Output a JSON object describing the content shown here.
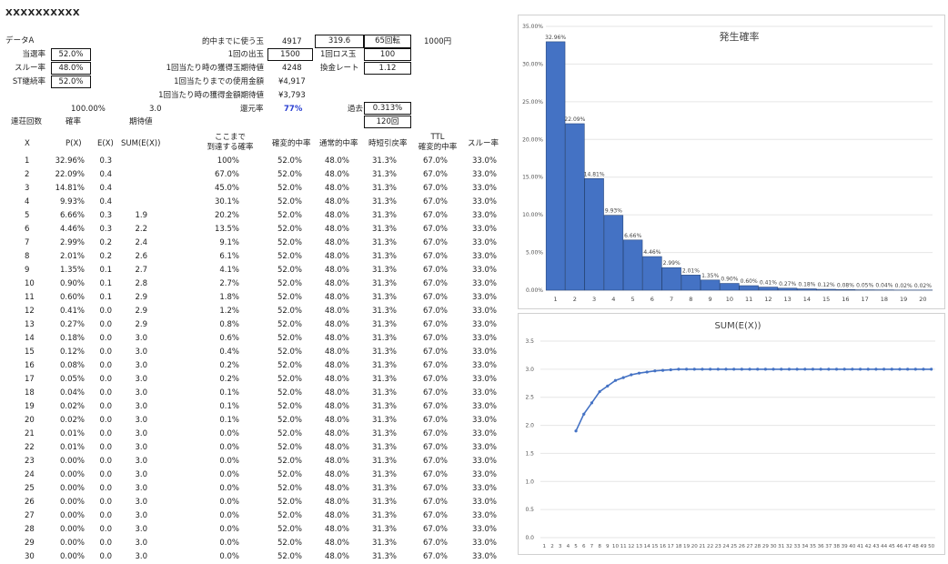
{
  "sheet": {
    "title": "XXXXXXXXXX",
    "data_label": "データA",
    "params": [
      {
        "label": "当選率",
        "value": "52.0%"
      },
      {
        "label": "スルー率",
        "value": "48.0%"
      },
      {
        "label": "ST継続率",
        "value": "52.0%"
      }
    ],
    "info": [
      {
        "label": "的中までに使う玉",
        "value": "4917"
      },
      {
        "label": "1回の出玉",
        "value": "1500"
      },
      {
        "label": "1回当たり時の獲得玉期待値",
        "value": "4248"
      },
      {
        "label": "1回当たりまでの使用金額",
        "value": "¥4,917"
      },
      {
        "label": "1回当たり時の獲得金額期待値",
        "value": "¥3,793"
      }
    ],
    "extra": {
      "v1": "319.6",
      "v2": "65回転",
      "v3": "1000円",
      "loss_label": "1回ロス玉",
      "loss_value": "100",
      "rate_label": "換金レート",
      "rate_value": "1.12",
      "return_label": "還元率",
      "return_value": "77%",
      "past_label": "過去",
      "past_value": "0.313%",
      "past_count": "120回"
    },
    "summary": {
      "total_prob": "100.00%",
      "expected": "3.0"
    },
    "subheaders": {
      "col1": "連荘回数",
      "col2": "確率",
      "col3": "期待値"
    },
    "headers": [
      "X",
      "P(X)",
      "E(X)",
      "SUM(E(X))",
      "ここまで\n到達する確率",
      "確変的中率",
      "通常的中率",
      "時短引戻率",
      "TTL\n確変的中率",
      "スルー率"
    ],
    "rows": [
      [
        "1",
        "32.96%",
        "0.3",
        "",
        "100%",
        "52.0%",
        "48.0%",
        "31.3%",
        "67.0%",
        "33.0%"
      ],
      [
        "2",
        "22.09%",
        "0.4",
        "",
        "67.0%",
        "52.0%",
        "48.0%",
        "31.3%",
        "67.0%",
        "33.0%"
      ],
      [
        "3",
        "14.81%",
        "0.4",
        "",
        "45.0%",
        "52.0%",
        "48.0%",
        "31.3%",
        "67.0%",
        "33.0%"
      ],
      [
        "4",
        "9.93%",
        "0.4",
        "",
        "30.1%",
        "52.0%",
        "48.0%",
        "31.3%",
        "67.0%",
        "33.0%"
      ],
      [
        "5",
        "6.66%",
        "0.3",
        "1.9",
        "20.2%",
        "52.0%",
        "48.0%",
        "31.3%",
        "67.0%",
        "33.0%"
      ],
      [
        "6",
        "4.46%",
        "0.3",
        "2.2",
        "13.5%",
        "52.0%",
        "48.0%",
        "31.3%",
        "67.0%",
        "33.0%"
      ],
      [
        "7",
        "2.99%",
        "0.2",
        "2.4",
        "9.1%",
        "52.0%",
        "48.0%",
        "31.3%",
        "67.0%",
        "33.0%"
      ],
      [
        "8",
        "2.01%",
        "0.2",
        "2.6",
        "6.1%",
        "52.0%",
        "48.0%",
        "31.3%",
        "67.0%",
        "33.0%"
      ],
      [
        "9",
        "1.35%",
        "0.1",
        "2.7",
        "4.1%",
        "52.0%",
        "48.0%",
        "31.3%",
        "67.0%",
        "33.0%"
      ],
      [
        "10",
        "0.90%",
        "0.1",
        "2.8",
        "2.7%",
        "52.0%",
        "48.0%",
        "31.3%",
        "67.0%",
        "33.0%"
      ],
      [
        "11",
        "0.60%",
        "0.1",
        "2.9",
        "1.8%",
        "52.0%",
        "48.0%",
        "31.3%",
        "67.0%",
        "33.0%"
      ],
      [
        "12",
        "0.41%",
        "0.0",
        "2.9",
        "1.2%",
        "52.0%",
        "48.0%",
        "31.3%",
        "67.0%",
        "33.0%"
      ],
      [
        "13",
        "0.27%",
        "0.0",
        "2.9",
        "0.8%",
        "52.0%",
        "48.0%",
        "31.3%",
        "67.0%",
        "33.0%"
      ],
      [
        "14",
        "0.18%",
        "0.0",
        "3.0",
        "0.6%",
        "52.0%",
        "48.0%",
        "31.3%",
        "67.0%",
        "33.0%"
      ],
      [
        "15",
        "0.12%",
        "0.0",
        "3.0",
        "0.4%",
        "52.0%",
        "48.0%",
        "31.3%",
        "67.0%",
        "33.0%"
      ],
      [
        "16",
        "0.08%",
        "0.0",
        "3.0",
        "0.2%",
        "52.0%",
        "48.0%",
        "31.3%",
        "67.0%",
        "33.0%"
      ],
      [
        "17",
        "0.05%",
        "0.0",
        "3.0",
        "0.2%",
        "52.0%",
        "48.0%",
        "31.3%",
        "67.0%",
        "33.0%"
      ],
      [
        "18",
        "0.04%",
        "0.0",
        "3.0",
        "0.1%",
        "52.0%",
        "48.0%",
        "31.3%",
        "67.0%",
        "33.0%"
      ],
      [
        "19",
        "0.02%",
        "0.0",
        "3.0",
        "0.1%",
        "52.0%",
        "48.0%",
        "31.3%",
        "67.0%",
        "33.0%"
      ],
      [
        "20",
        "0.02%",
        "0.0",
        "3.0",
        "0.1%",
        "52.0%",
        "48.0%",
        "31.3%",
        "67.0%",
        "33.0%"
      ],
      [
        "21",
        "0.01%",
        "0.0",
        "3.0",
        "0.0%",
        "52.0%",
        "48.0%",
        "31.3%",
        "67.0%",
        "33.0%"
      ],
      [
        "22",
        "0.01%",
        "0.0",
        "3.0",
        "0.0%",
        "52.0%",
        "48.0%",
        "31.3%",
        "67.0%",
        "33.0%"
      ],
      [
        "23",
        "0.00%",
        "0.0",
        "3.0",
        "0.0%",
        "52.0%",
        "48.0%",
        "31.3%",
        "67.0%",
        "33.0%"
      ],
      [
        "24",
        "0.00%",
        "0.0",
        "3.0",
        "0.0%",
        "52.0%",
        "48.0%",
        "31.3%",
        "67.0%",
        "33.0%"
      ],
      [
        "25",
        "0.00%",
        "0.0",
        "3.0",
        "0.0%",
        "52.0%",
        "48.0%",
        "31.3%",
        "67.0%",
        "33.0%"
      ],
      [
        "26",
        "0.00%",
        "0.0",
        "3.0",
        "0.0%",
        "52.0%",
        "48.0%",
        "31.3%",
        "67.0%",
        "33.0%"
      ],
      [
        "27",
        "0.00%",
        "0.0",
        "3.0",
        "0.0%",
        "52.0%",
        "48.0%",
        "31.3%",
        "67.0%",
        "33.0%"
      ],
      [
        "28",
        "0.00%",
        "0.0",
        "3.0",
        "0.0%",
        "52.0%",
        "48.0%",
        "31.3%",
        "67.0%",
        "33.0%"
      ],
      [
        "29",
        "0.00%",
        "0.0",
        "3.0",
        "0.0%",
        "52.0%",
        "48.0%",
        "31.3%",
        "67.0%",
        "33.0%"
      ],
      [
        "30",
        "0.00%",
        "0.0",
        "3.0",
        "0.0%",
        "52.0%",
        "48.0%",
        "31.3%",
        "67.0%",
        "33.0%"
      ]
    ]
  },
  "chart_data": [
    {
      "type": "bar",
      "title": "発生確率",
      "xlabel": "",
      "ylabel": "",
      "categories": [
        "1",
        "2",
        "3",
        "4",
        "5",
        "6",
        "7",
        "8",
        "9",
        "10",
        "11",
        "12",
        "13",
        "14",
        "15",
        "16",
        "17",
        "18",
        "19",
        "20"
      ],
      "values": [
        32.96,
        22.09,
        14.81,
        9.93,
        6.66,
        4.46,
        2.99,
        2.01,
        1.35,
        0.9,
        0.6,
        0.41,
        0.27,
        0.18,
        0.12,
        0.08,
        0.05,
        0.04,
        0.02,
        0.02
      ],
      "data_labels": [
        "32.96%",
        "22.09%",
        "14.81%",
        "9.93%",
        "6.66%",
        "4.46%",
        "2.99%",
        "2.01%",
        "1.35%",
        "0.90%",
        "0.60%",
        "0.41%",
        "0.27%",
        "0.18%",
        "0.12%",
        "0.08%",
        "0.05%",
        "0.04%",
        "0.02%",
        "0.02%"
      ],
      "ylim": [
        0,
        35
      ],
      "yticks": [
        "0.00%",
        "5.00%",
        "10.00%",
        "15.00%",
        "20.00%",
        "25.00%",
        "30.00%",
        "35.00%"
      ],
      "color": "#4472c4"
    },
    {
      "type": "line",
      "title": "SUM(E(X))",
      "xlabel": "",
      "ylabel": "",
      "x": [
        1,
        2,
        3,
        4,
        5,
        6,
        7,
        8,
        9,
        10,
        11,
        12,
        13,
        14,
        15,
        16,
        17,
        18,
        19,
        20,
        21,
        22,
        23,
        24,
        25,
        26,
        27,
        28,
        29,
        30,
        31,
        32,
        33,
        34,
        35,
        36,
        37,
        38,
        39,
        40,
        41,
        42,
        43,
        44,
        45,
        46,
        47,
        48,
        49,
        50
      ],
      "values": [
        null,
        null,
        null,
        null,
        1.9,
        2.2,
        2.4,
        2.6,
        2.7,
        2.8,
        2.85,
        2.9,
        2.93,
        2.95,
        2.97,
        2.98,
        2.99,
        3.0,
        3.0,
        3.0,
        3.0,
        3.0,
        3.0,
        3.0,
        3.0,
        3.0,
        3.0,
        3.0,
        3.0,
        3.0,
        3.0,
        3.0,
        3.0,
        3.0,
        3.0,
        3.0,
        3.0,
        3.0,
        3.0,
        3.0,
        3.0,
        3.0,
        3.0,
        3.0,
        3.0,
        3.0,
        3.0,
        3.0,
        3.0,
        3.0
      ],
      "ylim": [
        0,
        3.5
      ],
      "yticks": [
        "0.0",
        "0.5",
        "1.0",
        "1.5",
        "2.0",
        "2.5",
        "3.0",
        "3.5"
      ],
      "color": "#4472c4"
    }
  ]
}
